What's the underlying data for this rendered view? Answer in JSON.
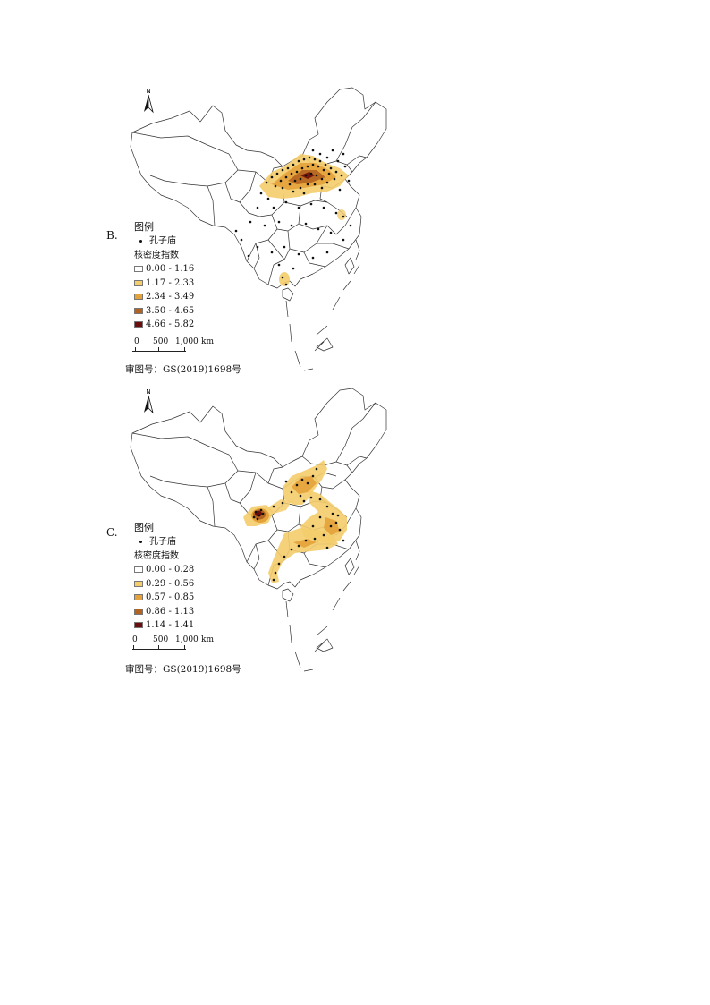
{
  "panels": [
    {
      "label": "B.",
      "legend": {
        "title": "图例",
        "point_label": "孔子庙",
        "density_title": "核密度指数",
        "classes": [
          {
            "range": "0.00 - 1.16",
            "color": "#ffffff"
          },
          {
            "range": "1.17 - 2.33",
            "color": "#f4cd6c"
          },
          {
            "range": "2.34 - 3.49",
            "color": "#e4a23a"
          },
          {
            "range": "3.50 - 4.65",
            "color": "#b2631f"
          },
          {
            "range": "4.66 - 5.82",
            "color": "#6a0d0c"
          }
        ]
      },
      "scale": {
        "ticks": [
          "0",
          "500",
          "1,000"
        ],
        "unit": "km"
      },
      "review_number": "审图号：GS(2019)1698号",
      "north": "N"
    },
    {
      "label": "C.",
      "legend": {
        "title": "图例",
        "point_label": "孔子庙",
        "density_title": "核密度指数",
        "classes": [
          {
            "range": "0.00 - 0.28",
            "color": "#ffffff"
          },
          {
            "range": "0.29 - 0.56",
            "color": "#f4cd6c"
          },
          {
            "range": "0.57 - 0.85",
            "color": "#e4a23a"
          },
          {
            "range": "0.86 - 1.13",
            "color": "#b2631f"
          },
          {
            "range": "1.14 - 1.41",
            "color": "#6a0d0c"
          }
        ]
      },
      "scale": {
        "ticks": [
          "0",
          "500",
          "1,000"
        ],
        "unit": "km"
      },
      "review_number": "审图号：GS(2019)1698号",
      "north": "N"
    }
  ]
}
